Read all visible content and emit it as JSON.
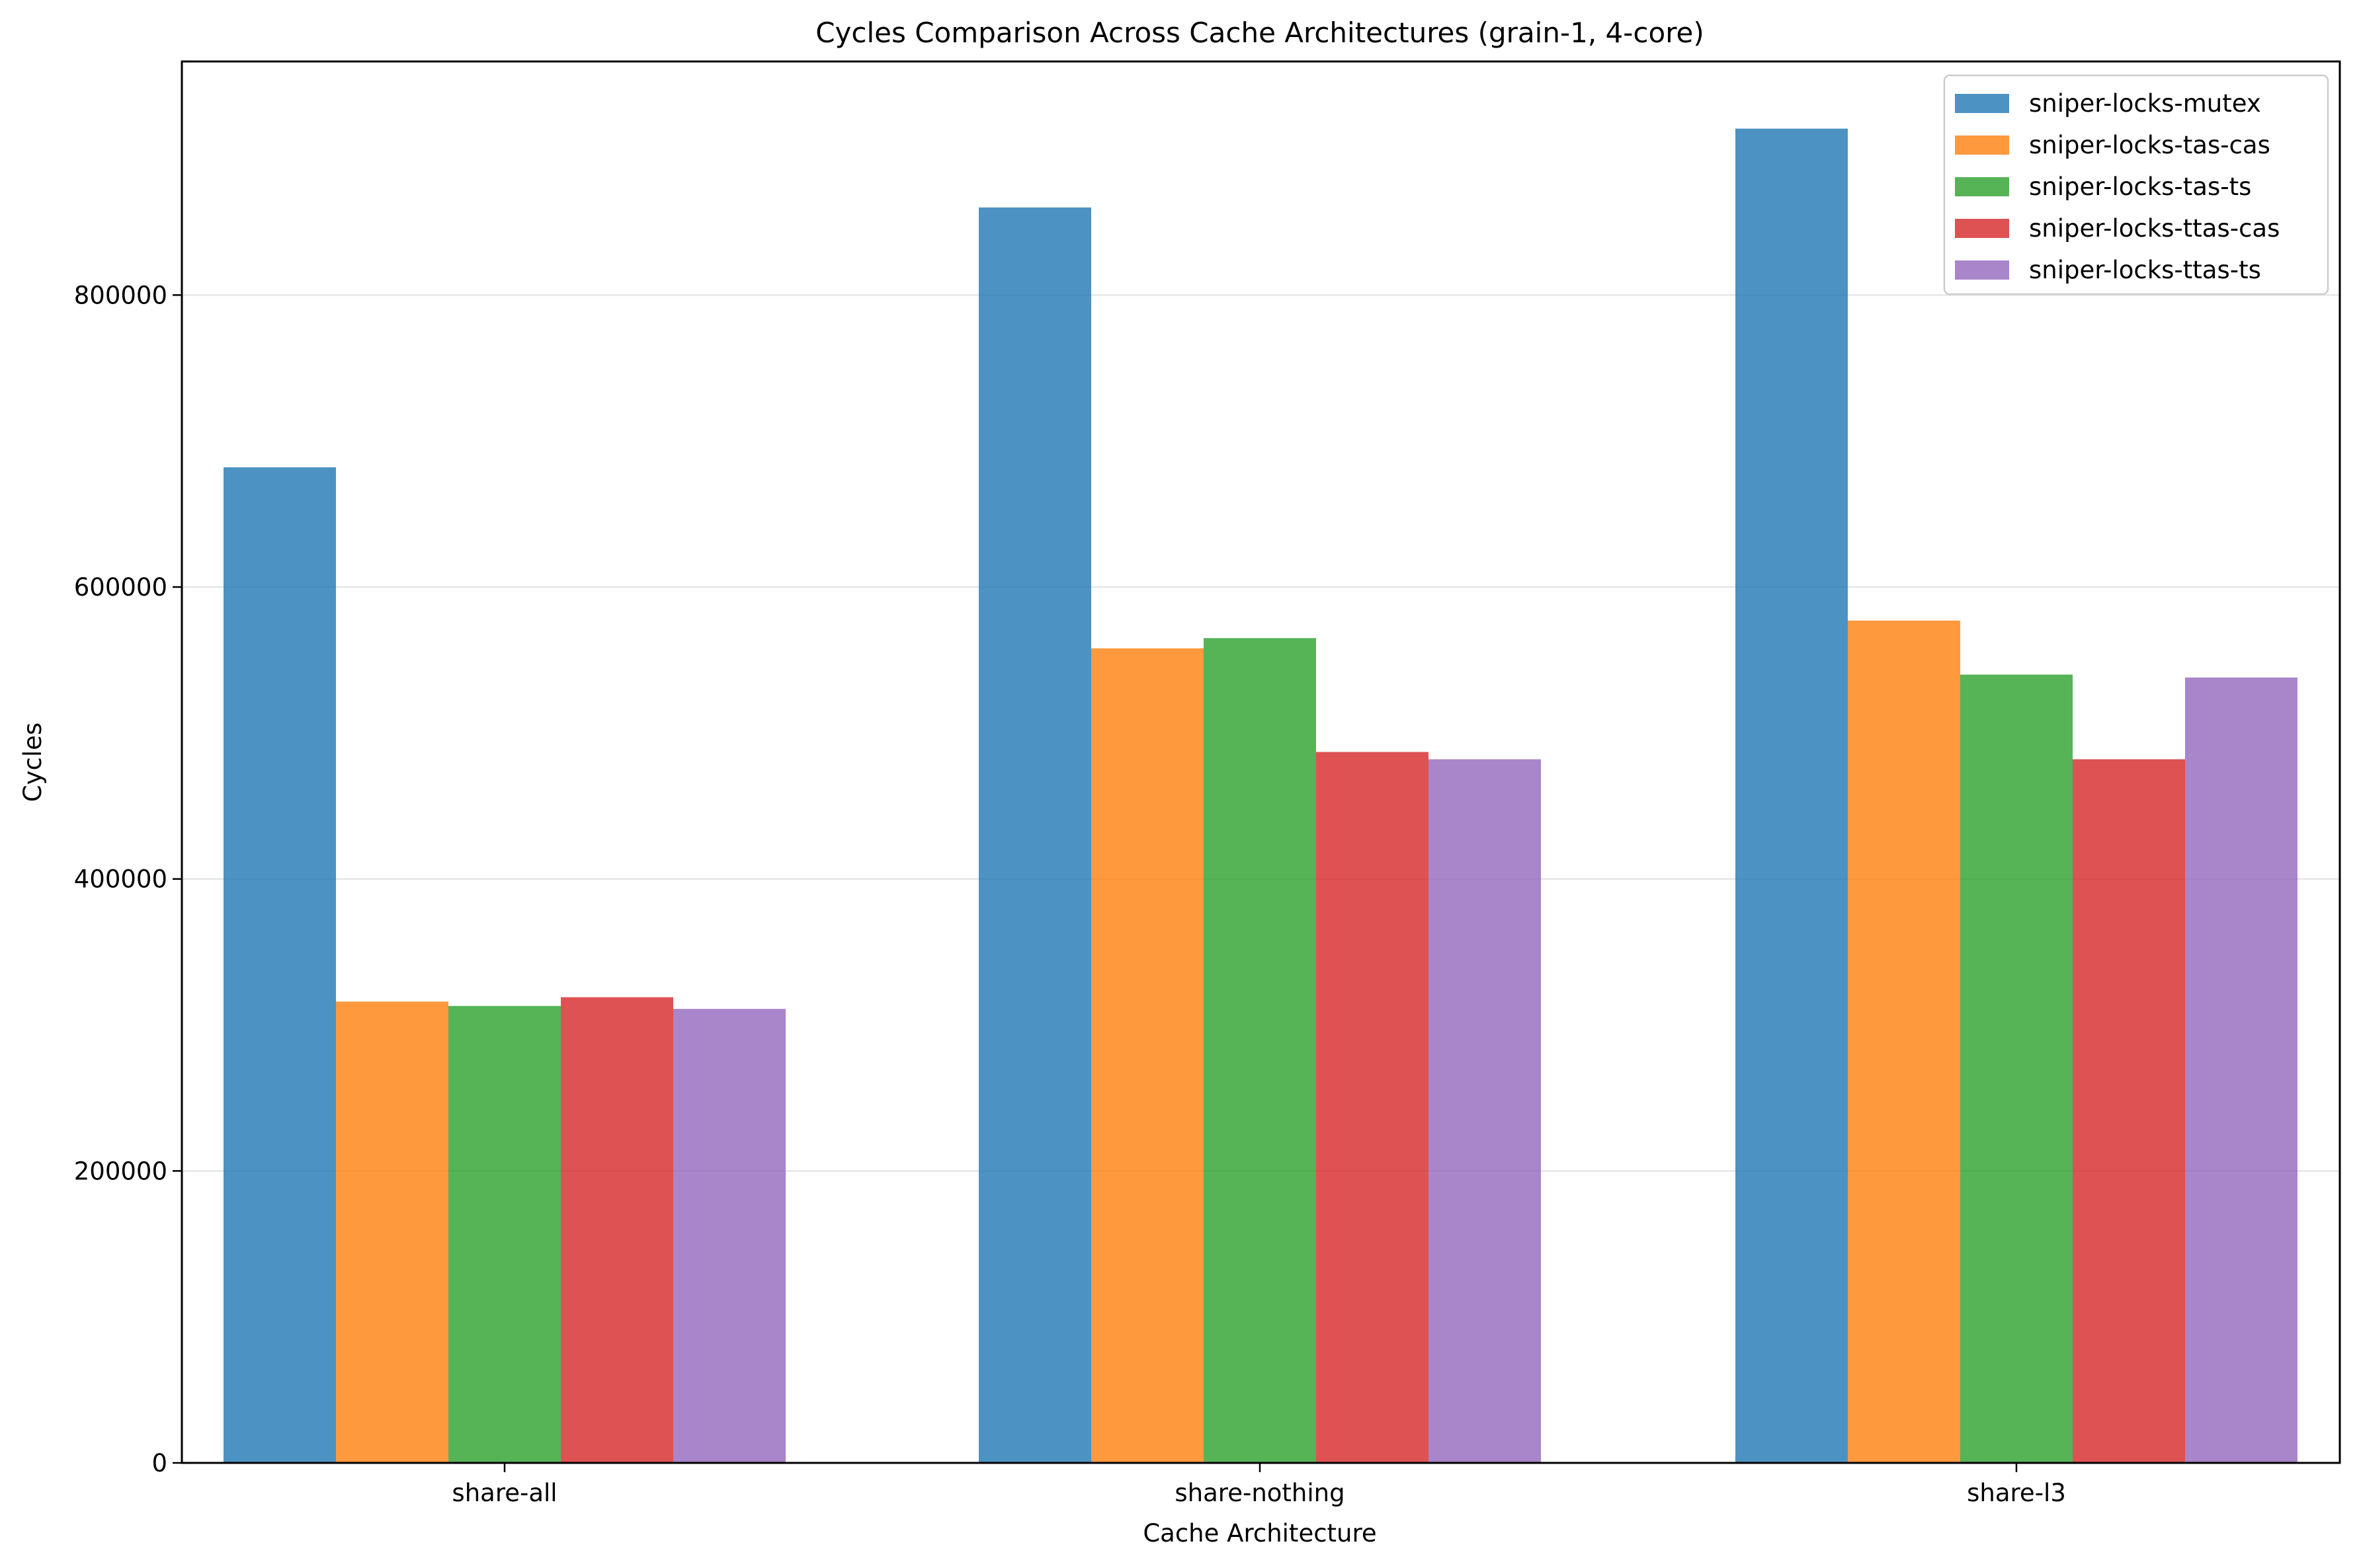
{
  "chart_data": {
    "type": "bar",
    "title": "Cycles Comparison Across Cache Architectures (grain-1, 4-core)",
    "xlabel": "Cache Architecture",
    "ylabel": "Cycles",
    "categories": [
      "share-all",
      "share-nothing",
      "share-l3"
    ],
    "ylim": [
      0,
      960000
    ],
    "yticks": [
      0,
      200000,
      400000,
      600000,
      800000
    ],
    "grid": "horizontal",
    "legend_position": "top-right",
    "series": [
      {
        "name": "sniper-locks-mutex",
        "color": "#1f77b4",
        "values": [
          682000,
          860000,
          914000
        ]
      },
      {
        "name": "sniper-locks-tas-cas",
        "color": "#ff7f0e",
        "values": [
          316000,
          558000,
          577000
        ]
      },
      {
        "name": "sniper-locks-tas-ts",
        "color": "#2ca02c",
        "values": [
          313000,
          565000,
          540000
        ]
      },
      {
        "name": "sniper-locks-ttas-cas",
        "color": "#d62728",
        "values": [
          319000,
          487000,
          482000
        ]
      },
      {
        "name": "sniper-locks-ttas-ts",
        "color": "#9467bd",
        "values": [
          311000,
          482000,
          538000
        ]
      }
    ]
  }
}
